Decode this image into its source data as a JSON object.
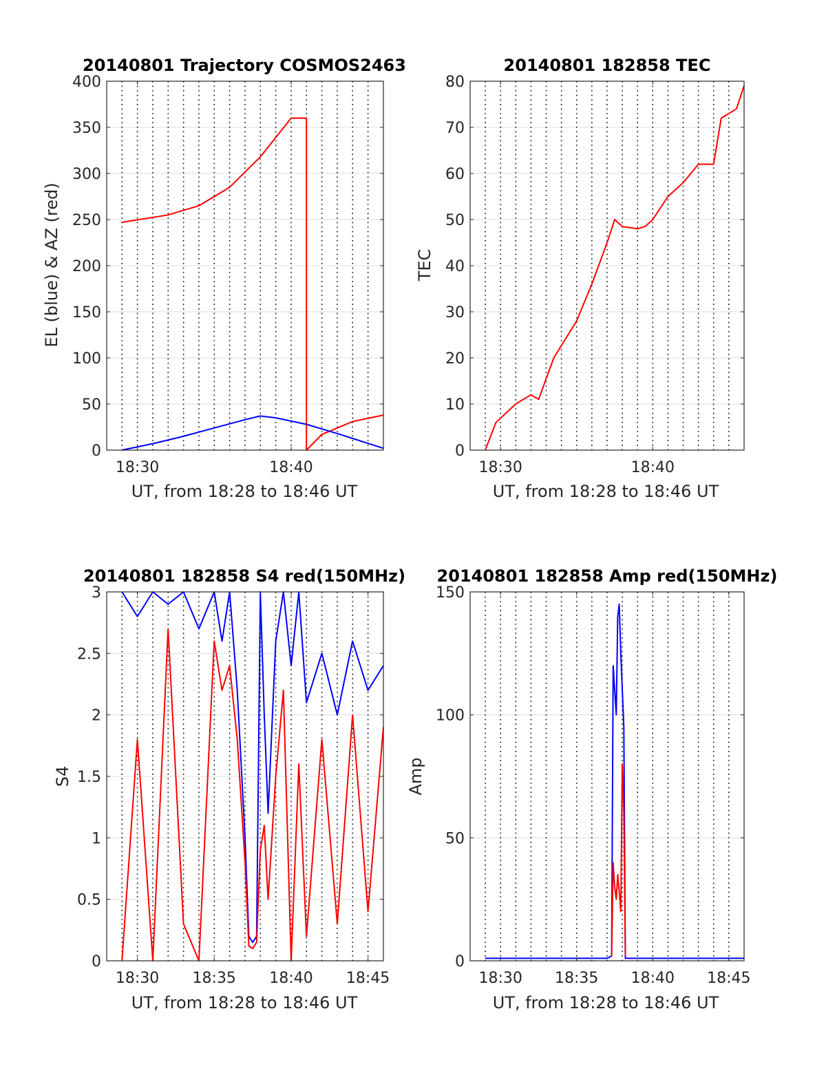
{
  "figure": {
    "background": "#ffffff"
  },
  "chart_data": [
    {
      "type": "line",
      "title": "20140801 Trajectory COSMOS2463",
      "xlabel": "UT, from 18:28 to 18:46 UT",
      "ylabel": "EL (blue) & AZ (red)",
      "xlim": [
        18.4667,
        18.7667
      ],
      "ylim": [
        0,
        400
      ],
      "yticks": [
        0,
        50,
        100,
        150,
        200,
        250,
        300,
        350,
        400
      ],
      "ytick_labels": [
        "0",
        "50",
        "100",
        "150",
        "200",
        "250",
        "300",
        "350",
        "400"
      ],
      "xticks": [
        18.5,
        18.6667
      ],
      "xtick_labels": [
        "18:30",
        "18:40"
      ],
      "vgrid_dotted_every_min": 1,
      "hgrid": true,
      "series": [
        {
          "color": "#ff0000",
          "x": [
            18.4833,
            18.5333,
            18.5667,
            18.6,
            18.6333,
            18.6667,
            18.6833,
            18.6833,
            18.7,
            18.7333,
            18.7667
          ],
          "values": [
            247,
            255,
            265,
            285,
            318,
            360,
            360,
            0,
            17,
            31,
            38
          ]
        },
        {
          "color": "#0000ff",
          "x": [
            18.4833,
            18.5167,
            18.55,
            18.5833,
            18.6167,
            18.6333,
            18.65,
            18.6833,
            18.7167,
            18.7667
          ],
          "values": [
            0,
            7,
            15,
            24,
            33,
            37,
            35,
            28,
            18,
            2
          ]
        }
      ]
    },
    {
      "type": "line",
      "title": "20140801 182858 TEC",
      "xlabel": "UT, from 18:28 to 18:46 UT",
      "ylabel": "TEC",
      "xlim": [
        18.4667,
        18.7667
      ],
      "ylim": [
        0,
        80
      ],
      "yticks": [
        0,
        10,
        20,
        30,
        40,
        50,
        60,
        70,
        80
      ],
      "ytick_labels": [
        "0",
        "10",
        "20",
        "30",
        "40",
        "50",
        "60",
        "70",
        "80"
      ],
      "xticks": [
        18.5,
        18.6667
      ],
      "xtick_labels": [
        "18:30",
        "18:40"
      ],
      "vgrid_dotted_every_min": 1,
      "hgrid": true,
      "series": [
        {
          "color": "#ff0000",
          "x": [
            18.4833,
            18.495,
            18.5167,
            18.5333,
            18.5417,
            18.5583,
            18.5833,
            18.6,
            18.6167,
            18.625,
            18.6333,
            18.65,
            18.6583,
            18.6667,
            18.6833,
            18.7,
            18.7167,
            18.7333,
            18.7417,
            18.7583,
            18.7667
          ],
          "values": [
            0,
            6,
            10,
            12,
            11,
            20,
            28,
            36,
            45,
            50,
            48.5,
            48,
            48.5,
            50,
            55,
            58,
            62,
            62,
            72,
            74,
            79
          ]
        }
      ]
    },
    {
      "type": "line",
      "title": "20140801 182858 S4 red(150MHz)",
      "xlabel": "UT, from 18:28 to 18:46 UT",
      "ylabel": "S4",
      "xlim": [
        18.4667,
        18.7667
      ],
      "ylim": [
        0,
        3
      ],
      "yticks": [
        0,
        0.5,
        1,
        1.5,
        2,
        2.5,
        3
      ],
      "ytick_labels": [
        "0",
        "0.5",
        "1",
        "1.5",
        "2",
        "2.5",
        "3"
      ],
      "xticks": [
        18.5,
        18.5833,
        18.6667,
        18.75
      ],
      "xtick_labels": [
        "18:30",
        "18:35",
        "18:40",
        "18:45"
      ],
      "vgrid_dotted_every_min": 1,
      "hgrid": true,
      "series": [
        {
          "color": "#0000ff",
          "x": [
            18.4833,
            18.5,
            18.5167,
            18.5333,
            18.55,
            18.5667,
            18.5833,
            18.5917,
            18.6,
            18.6083,
            18.6167,
            18.6208,
            18.625,
            18.6292,
            18.6333,
            18.6375,
            18.6417,
            18.65,
            18.6583,
            18.6667,
            18.675,
            18.6833,
            18.7,
            18.7167,
            18.7333,
            18.75,
            18.7667
          ],
          "values": [
            3,
            2.8,
            3,
            2.9,
            3,
            2.7,
            3,
            2.6,
            3,
            2.2,
            1.0,
            0.2,
            0.15,
            0.2,
            3,
            2.0,
            1.2,
            2.6,
            3,
            2.4,
            3,
            2.1,
            2.5,
            2.0,
            2.6,
            2.2,
            2.4
          ]
        },
        {
          "color": "#ff0000",
          "x": [
            18.4833,
            18.5,
            18.5167,
            18.5333,
            18.55,
            18.5667,
            18.5833,
            18.5917,
            18.6,
            18.6083,
            18.6167,
            18.6208,
            18.625,
            18.6292,
            18.6333,
            18.6375,
            18.6417,
            18.65,
            18.6583,
            18.6667,
            18.675,
            18.6833,
            18.7,
            18.7167,
            18.7333,
            18.75,
            18.7667
          ],
          "values": [
            0,
            1.8,
            0,
            2.7,
            0.3,
            0,
            2.6,
            2.2,
            2.4,
            1.8,
            0.8,
            0.12,
            0.1,
            0.15,
            0.9,
            1.1,
            0.5,
            1.5,
            2.2,
            0,
            1.6,
            0.2,
            1.8,
            0.3,
            2.0,
            0.4,
            1.9
          ]
        }
      ]
    },
    {
      "type": "line",
      "title": "20140801 182858 Amp red(150MHz)",
      "xlabel": "UT, from 18:28 to 18:46 UT",
      "ylabel": "Amp",
      "xlim": [
        18.4667,
        18.7667
      ],
      "ylim": [
        0,
        150
      ],
      "yticks": [
        0,
        50,
        100,
        150
      ],
      "ytick_labels": [
        "0",
        "50",
        "100",
        "150"
      ],
      "xticks": [
        18.5,
        18.5833,
        18.6667,
        18.75
      ],
      "xtick_labels": [
        "18:30",
        "18:35",
        "18:40",
        "18:45"
      ],
      "vgrid_dotted_every_min": 1,
      "hgrid": true,
      "series": [
        {
          "color": "#0000ff",
          "x": [
            18.4833,
            18.55,
            18.6167,
            18.6217,
            18.6233,
            18.6267,
            18.6283,
            18.63,
            18.6317,
            18.635,
            18.6367,
            18.6417,
            18.7,
            18.7667
          ],
          "values": [
            1,
            1,
            1,
            2,
            120,
            100,
            140,
            145,
            125,
            95,
            1,
            1,
            1,
            1
          ]
        },
        {
          "color": "#ff0000",
          "x": [
            18.6217,
            18.6233,
            18.625,
            18.6267,
            18.6283,
            18.63,
            18.6317,
            18.6333,
            18.635,
            18.6367
          ],
          "values": [
            2,
            40,
            30,
            25,
            35,
            28,
            20,
            80,
            60,
            2
          ]
        }
      ]
    }
  ]
}
